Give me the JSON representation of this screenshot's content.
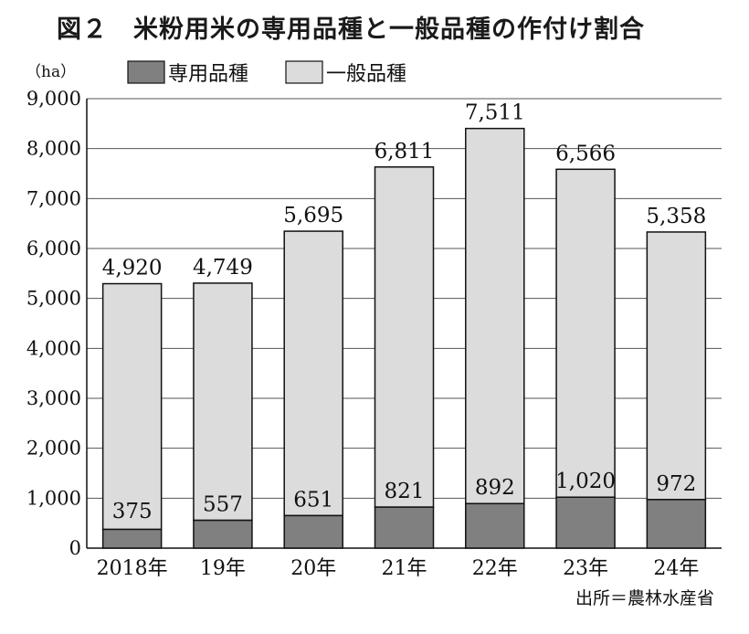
{
  "title": "図２　米粉用米の専用品種と一般品種の作付け割合",
  "source": "出所＝農林水産省",
  "colors": {
    "dedicated": "#808080",
    "general": "#dcdcdc",
    "stroke": "#111111",
    "grid": "#555555"
  },
  "chart_data": {
    "type": "bar",
    "stacked": true,
    "title": "図２　米粉用米の専用品種と一般品種の作付け割合",
    "unit_label": "（ha）",
    "categories": [
      "2018年",
      "19年",
      "20年",
      "21年",
      "22年",
      "23年",
      "24年"
    ],
    "series": [
      {
        "name": "専用品種",
        "values": [
          375,
          557,
          651,
          821,
          892,
          1020,
          972
        ],
        "labels": [
          "375",
          "557",
          "651",
          "821",
          "892",
          "1,020",
          "972"
        ]
      },
      {
        "name": "一般品種",
        "values": [
          4920,
          4749,
          5695,
          6811,
          7511,
          6566,
          5358
        ],
        "labels": [
          "4,920",
          "4,749",
          "5,695",
          "6,811",
          "7,511",
          "6,566",
          "5,358"
        ]
      }
    ],
    "ylim": [
      0,
      9000
    ],
    "yticks": [
      0,
      1000,
      2000,
      3000,
      4000,
      5000,
      6000,
      7000,
      8000,
      9000
    ],
    "ytick_labels": [
      "0",
      "1,000",
      "2,000",
      "3,000",
      "4,000",
      "5,000",
      "6,000",
      "7,000",
      "8,000",
      "9,000"
    ],
    "grid": true,
    "legend": "top-left"
  }
}
